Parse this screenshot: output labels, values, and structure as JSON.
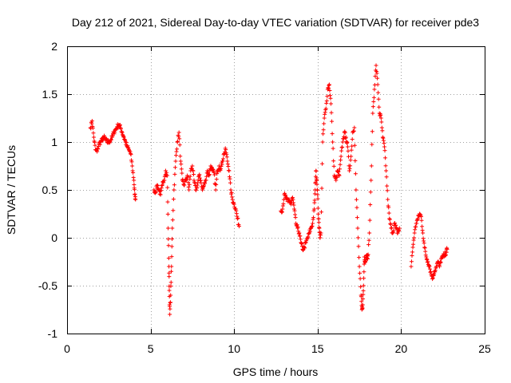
{
  "chart_data": {
    "type": "scatter",
    "title": "Day 212 of 2021, Sidereal Day-to-day VTEC variation (SDTVAR) for receiver pde3",
    "xlabel": "GPS time / hours",
    "ylabel": "SDTVAR / TECUs",
    "xlim": [
      0,
      25
    ],
    "ylim": [
      -1,
      2
    ],
    "xticks": [
      0,
      5,
      10,
      15,
      20,
      25
    ],
    "xtick_labels": [
      "0",
      "5",
      "10",
      "15",
      "20",
      "25"
    ],
    "yticks": [
      -1,
      -0.5,
      0,
      0.5,
      1,
      1.5,
      2
    ],
    "ytick_labels": [
      "-1",
      "-0.5",
      "0",
      "0.5",
      "1",
      "1.5",
      "2"
    ],
    "grid": true,
    "marker": "+",
    "series": [
      {
        "name": "pde3",
        "color": "#ff0000",
        "segments": [
          [
            [
              1.4,
              1.15
            ],
            [
              1.5,
              1.22
            ],
            [
              1.6,
              1.05
            ],
            [
              1.7,
              0.92
            ],
            [
              1.8,
              0.9
            ],
            [
              1.9,
              0.98
            ],
            [
              2.0,
              1.0
            ],
            [
              2.1,
              1.02
            ],
            [
              2.2,
              1.05
            ],
            [
              2.3,
              1.03
            ],
            [
              2.4,
              1.0
            ],
            [
              2.5,
              1.0
            ],
            [
              2.6,
              1.02
            ],
            [
              2.7,
              1.05
            ],
            [
              2.8,
              1.1
            ],
            [
              2.9,
              1.13
            ],
            [
              3.0,
              1.16
            ],
            [
              3.1,
              1.18
            ],
            [
              3.2,
              1.15
            ],
            [
              3.3,
              1.1
            ],
            [
              3.4,
              1.05
            ],
            [
              3.5,
              1.0
            ],
            [
              3.6,
              0.95
            ],
            [
              3.7,
              0.92
            ],
            [
              3.8,
              0.88
            ],
            [
              3.9,
              0.75
            ],
            [
              4.0,
              0.6
            ],
            [
              4.05,
              0.45
            ],
            [
              4.1,
              0.4
            ]
          ],
          [
            [
              5.2,
              0.5
            ],
            [
              5.3,
              0.48
            ],
            [
              5.4,
              0.55
            ],
            [
              5.5,
              0.5
            ],
            [
              5.6,
              0.45
            ],
            [
              5.7,
              0.55
            ],
            [
              5.8,
              0.6
            ],
            [
              5.9,
              0.7
            ],
            [
              6.0,
              0.65
            ],
            [
              6.05,
              0.1
            ],
            [
              6.1,
              -0.3
            ],
            [
              6.12,
              -0.55
            ],
            [
              6.15,
              -0.8
            ],
            [
              6.2,
              -0.6
            ],
            [
              6.25,
              -0.3
            ],
            [
              6.3,
              0.1
            ],
            [
              6.4,
              0.5
            ],
            [
              6.5,
              0.8
            ],
            [
              6.6,
              1.0
            ],
            [
              6.7,
              1.1
            ],
            [
              6.8,
              0.8
            ],
            [
              6.9,
              0.6
            ],
            [
              7.0,
              0.55
            ],
            [
              7.1,
              0.6
            ],
            [
              7.2,
              0.65
            ],
            [
              7.3,
              0.5
            ],
            [
              7.4,
              0.7
            ],
            [
              7.5,
              0.75
            ],
            [
              7.6,
              0.6
            ],
            [
              7.7,
              0.5
            ],
            [
              7.8,
              0.55
            ],
            [
              7.9,
              0.65
            ],
            [
              8.0,
              0.6
            ],
            [
              8.1,
              0.5
            ],
            [
              8.2,
              0.55
            ],
            [
              8.3,
              0.6
            ],
            [
              8.4,
              0.7
            ],
            [
              8.5,
              0.65
            ],
            [
              8.6,
              0.75
            ],
            [
              8.7,
              0.7
            ],
            [
              8.8,
              0.68
            ],
            [
              8.9,
              0.5
            ],
            [
              9.0,
              0.7
            ],
            [
              9.1,
              0.75
            ],
            [
              9.2,
              0.72
            ],
            [
              9.3,
              0.8
            ],
            [
              9.4,
              0.88
            ],
            [
              9.5,
              0.92
            ],
            [
              9.6,
              0.8
            ],
            [
              9.7,
              0.7
            ],
            [
              9.8,
              0.5
            ],
            [
              9.9,
              0.4
            ],
            [
              10.0,
              0.35
            ],
            [
              10.1,
              0.3
            ],
            [
              10.2,
              0.2
            ],
            [
              10.3,
              0.12
            ]
          ],
          [
            [
              12.8,
              0.28
            ],
            [
              12.9,
              0.3
            ],
            [
              13.0,
              0.45
            ],
            [
              13.1,
              0.42
            ],
            [
              13.2,
              0.38
            ],
            [
              13.3,
              0.4
            ],
            [
              13.4,
              0.35
            ],
            [
              13.5,
              0.42
            ],
            [
              13.6,
              0.3
            ],
            [
              13.7,
              0.15
            ],
            [
              13.8,
              0.1
            ],
            [
              13.9,
              0.05
            ],
            [
              14.0,
              -0.05
            ],
            [
              14.1,
              -0.12
            ],
            [
              14.2,
              -0.1
            ],
            [
              14.3,
              -0.05
            ],
            [
              14.4,
              0.0
            ],
            [
              14.5,
              0.05
            ],
            [
              14.6,
              0.1
            ],
            [
              14.7,
              0.15
            ],
            [
              14.8,
              0.3
            ],
            [
              14.85,
              0.5
            ],
            [
              14.9,
              0.7
            ],
            [
              14.95,
              0.6
            ],
            [
              15.0,
              0.45
            ],
            [
              15.05,
              0.2
            ],
            [
              15.1,
              0.1
            ],
            [
              15.15,
              0.0
            ],
            [
              15.2,
              0.05
            ],
            [
              15.3,
              1.0
            ],
            [
              15.4,
              1.25
            ],
            [
              15.5,
              1.35
            ],
            [
              15.6,
              1.55
            ],
            [
              15.7,
              1.6
            ],
            [
              15.8,
              1.4
            ],
            [
              15.9,
              1.0
            ],
            [
              16.0,
              0.65
            ],
            [
              16.1,
              0.6
            ],
            [
              16.2,
              0.7
            ],
            [
              16.3,
              0.65
            ],
            [
              16.4,
              0.85
            ],
            [
              16.5,
              1.0
            ],
            [
              16.6,
              1.1
            ],
            [
              16.7,
              1.05
            ],
            [
              16.8,
              0.95
            ],
            [
              16.9,
              0.7
            ],
            [
              17.0,
              0.85
            ],
            [
              17.1,
              1.1
            ],
            [
              17.2,
              1.15
            ],
            [
              17.3,
              0.5
            ],
            [
              17.4,
              0.1
            ],
            [
              17.5,
              -0.3
            ],
            [
              17.6,
              -0.6
            ],
            [
              17.65,
              -0.75
            ],
            [
              17.7,
              -0.7
            ],
            [
              17.75,
              -0.5
            ],
            [
              17.8,
              -0.2
            ],
            [
              17.85,
              -0.25
            ],
            [
              17.9,
              -0.2
            ],
            [
              17.95,
              -0.18
            ],
            [
              18.0,
              -0.22
            ],
            [
              18.1,
              0.05
            ],
            [
              18.2,
              0.6
            ],
            [
              18.3,
              1.3
            ],
            [
              18.4,
              1.55
            ],
            [
              18.5,
              1.8
            ],
            [
              18.6,
              1.6
            ],
            [
              18.7,
              1.3
            ],
            [
              18.8,
              1.25
            ],
            [
              18.9,
              1.05
            ],
            [
              19.0,
              0.95
            ],
            [
              19.1,
              0.7
            ],
            [
              19.2,
              0.4
            ],
            [
              19.3,
              0.2
            ],
            [
              19.4,
              0.1
            ],
            [
              19.5,
              0.05
            ],
            [
              19.6,
              0.15
            ],
            [
              19.7,
              0.1
            ],
            [
              19.8,
              0.05
            ],
            [
              19.9,
              0.1
            ]
          ],
          [
            [
              20.6,
              -0.3
            ],
            [
              20.7,
              -0.1
            ],
            [
              20.8,
              0.05
            ],
            [
              20.9,
              0.15
            ],
            [
              21.0,
              0.2
            ],
            [
              21.1,
              0.25
            ],
            [
              21.2,
              0.22
            ],
            [
              21.3,
              0.05
            ],
            [
              21.4,
              -0.1
            ],
            [
              21.5,
              -0.2
            ],
            [
              21.6,
              -0.25
            ],
            [
              21.7,
              -0.3
            ],
            [
              21.8,
              -0.38
            ],
            [
              21.9,
              -0.42
            ],
            [
              22.0,
              -0.35
            ],
            [
              22.1,
              -0.3
            ],
            [
              22.2,
              -0.25
            ],
            [
              22.3,
              -0.3
            ],
            [
              22.4,
              -0.22
            ],
            [
              22.5,
              -0.2
            ],
            [
              22.6,
              -0.18
            ],
            [
              22.7,
              -0.15
            ],
            [
              22.75,
              -0.12
            ]
          ]
        ]
      }
    ]
  }
}
